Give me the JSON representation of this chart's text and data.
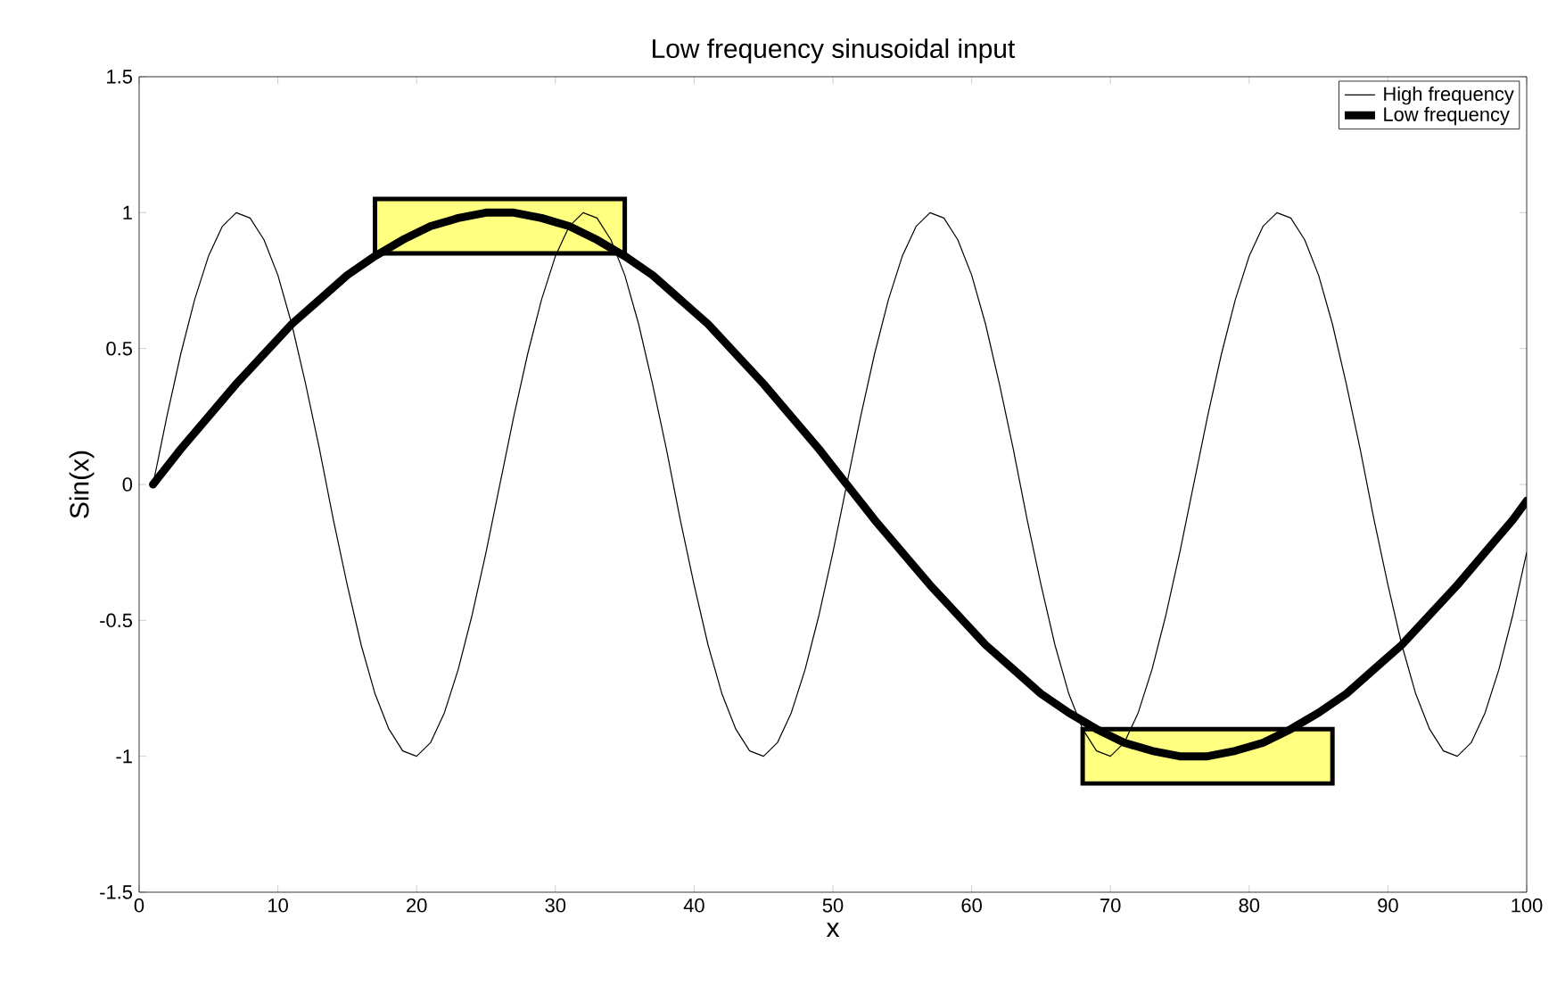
{
  "chart_data": {
    "type": "line",
    "title": "Low frequency sinusoidal input",
    "xlabel": "x",
    "ylabel": "Sin(x)",
    "xlim": [
      0,
      100
    ],
    "ylim": [
      -1.5,
      1.5
    ],
    "xticks": [
      0,
      10,
      20,
      30,
      40,
      50,
      60,
      70,
      80,
      90,
      100
    ],
    "yticks": [
      -1.5,
      -1,
      -0.5,
      0,
      0.5,
      1,
      1.5
    ],
    "legend": "top right",
    "grid": false,
    "marker": "none",
    "line_style": "solid",
    "series": [
      {
        "type": "bar",
        "color": "#ffff80",
        "x": [
          26,
          77
        ],
        "base": [
          0.85,
          -1.1
        ],
        "values": [
          0.2,
          0.2
        ]
      },
      {
        "name": "High frequency",
        "color": "#000000",
        "x": [
          1,
          2,
          3,
          4,
          5,
          6,
          7,
          8,
          9,
          10,
          11,
          12,
          13,
          14,
          15,
          16,
          17,
          18,
          19,
          20,
          21,
          22,
          23,
          24,
          25,
          26,
          27,
          28,
          29,
          30,
          31,
          32,
          33,
          34,
          35,
          36,
          37,
          38,
          39,
          40,
          41,
          42,
          43,
          44,
          45,
          46,
          47,
          48,
          49,
          50,
          51,
          52,
          53,
          54,
          55,
          56,
          57,
          58,
          59,
          60,
          61,
          62,
          63,
          64,
          65,
          66,
          67,
          68,
          69,
          70,
          71,
          72,
          73,
          74,
          75,
          76,
          77,
          78,
          79,
          80,
          81,
          82,
          83,
          84,
          85,
          86,
          87,
          88,
          89,
          90,
          91,
          92,
          93,
          94,
          95,
          96,
          97,
          98,
          99,
          100
        ],
        "values": [
          0,
          0.25,
          0.48,
          0.68,
          0.84,
          0.95,
          1,
          0.98,
          0.9,
          0.77,
          0.59,
          0.37,
          0.13,
          -0.13,
          -0.37,
          -0.59,
          -0.77,
          -0.9,
          -0.98,
          -1,
          -0.95,
          -0.84,
          -0.68,
          -0.48,
          -0.25,
          0,
          0.25,
          0.48,
          0.68,
          0.84,
          0.95,
          1,
          0.98,
          0.9,
          0.77,
          0.59,
          0.37,
          0.13,
          -0.13,
          -0.37,
          -0.59,
          -0.77,
          -0.9,
          -0.98,
          -1,
          -0.95,
          -0.84,
          -0.68,
          -0.48,
          -0.25,
          0,
          0.25,
          0.48,
          0.68,
          0.84,
          0.95,
          1,
          0.98,
          0.9,
          0.77,
          0.59,
          0.37,
          0.13,
          -0.13,
          -0.37,
          -0.59,
          -0.77,
          -0.9,
          -0.98,
          -1,
          -0.95,
          -0.84,
          -0.68,
          -0.48,
          -0.25,
          0,
          0.25,
          0.48,
          0.68,
          0.84,
          0.95,
          1,
          0.98,
          0.9,
          0.77,
          0.59,
          0.37,
          0.13,
          -0.13,
          -0.37,
          -0.59,
          -0.77,
          -0.9,
          -0.98,
          -1,
          -0.95,
          -0.84,
          -0.68,
          -0.48,
          -0.25
        ]
      },
      {
        "name": "Low frequency",
        "color": "#000000",
        "x": [
          1,
          3,
          5,
          7,
          9,
          11,
          13,
          15,
          17,
          19,
          21,
          23,
          25,
          27,
          29,
          31,
          33,
          35,
          37,
          39,
          41,
          43,
          45,
          47,
          49,
          51,
          53,
          55,
          57,
          59,
          61,
          63,
          65,
          67,
          69,
          71,
          73,
          75,
          77,
          79,
          81,
          83,
          85,
          87,
          89,
          91,
          93,
          95,
          97,
          99,
          100
        ],
        "values": [
          0,
          0.13,
          0.25,
          0.37,
          0.48,
          0.59,
          0.68,
          0.77,
          0.84,
          0.9,
          0.95,
          0.98,
          1,
          1,
          0.98,
          0.95,
          0.9,
          0.84,
          0.77,
          0.68,
          0.59,
          0.48,
          0.37,
          0.25,
          0.13,
          0,
          -0.13,
          -0.25,
          -0.37,
          -0.48,
          -0.59,
          -0.68,
          -0.77,
          -0.84,
          -0.9,
          -0.95,
          -0.98,
          -1,
          -1,
          -0.98,
          -0.95,
          -0.9,
          -0.84,
          -0.77,
          -0.68,
          -0.59,
          -0.48,
          -0.37,
          -0.25,
          -0.13,
          -0.06
        ]
      }
    ]
  }
}
